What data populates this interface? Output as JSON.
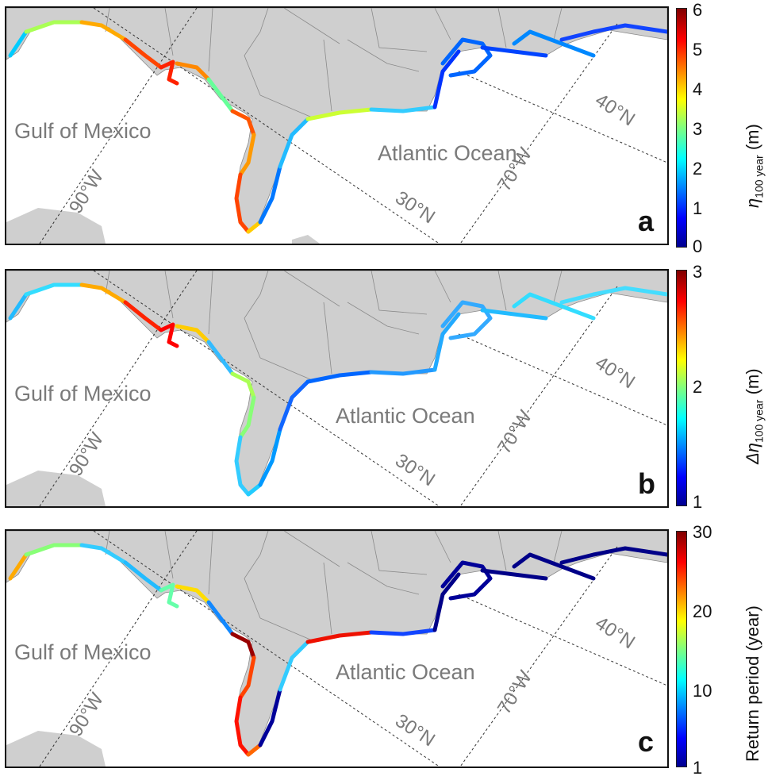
{
  "labels": {
    "gulf": "Gulf of Mexico",
    "atlantic": "Atlantic Ocean",
    "lat30": "30°N",
    "lat40": "40°N",
    "lon90": "90°W",
    "lon70": "70°W"
  },
  "panels": [
    {
      "letter": "a",
      "colorbar": {
        "title_symbol": "η",
        "title_sub": "100 year",
        "title_unit": "(m)",
        "ticks": [
          "6",
          "5",
          "4",
          "3",
          "2",
          "1",
          "0"
        ],
        "range": [
          0,
          6
        ],
        "colormap": "jet"
      }
    },
    {
      "letter": "b",
      "colorbar": {
        "title_symbol": "Δη",
        "title_sub": "100 year",
        "title_unit": "(m)",
        "ticks": [
          "3",
          "2",
          "1"
        ],
        "range": [
          1,
          3
        ],
        "colormap": "jet"
      }
    },
    {
      "letter": "c",
      "colorbar": {
        "title_symbol": "Return period (year)",
        "title_sub": "",
        "title_unit": "",
        "ticks": [
          "30",
          "20",
          "10",
          "1"
        ],
        "range": [
          1,
          30
        ],
        "colormap": "jet"
      }
    }
  ],
  "colors": {
    "land": "#cfcfcf",
    "ocean": "#ffffff",
    "border": "#8a8a8a",
    "label_gray": "#7a7a7a"
  }
}
